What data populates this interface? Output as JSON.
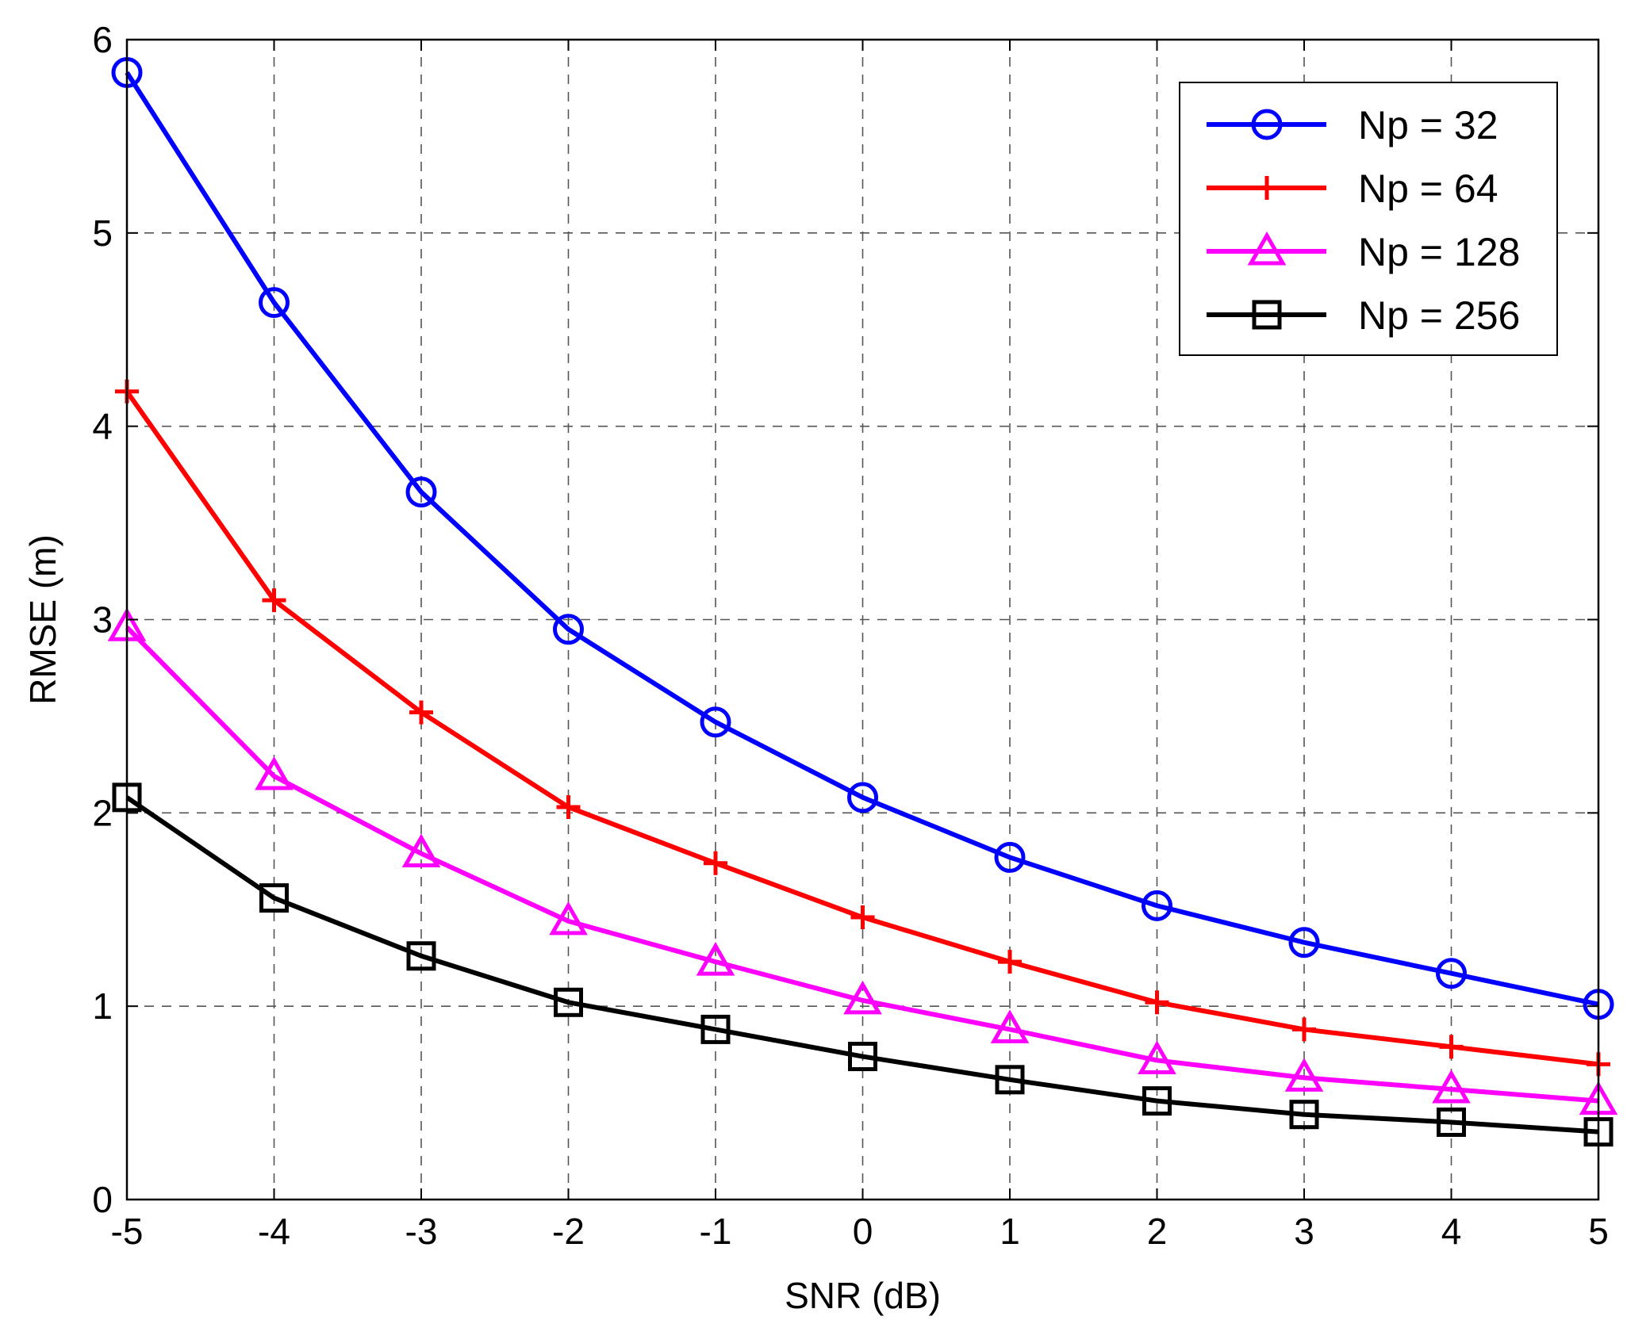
{
  "chart_data": {
    "type": "line",
    "title": "",
    "xlabel": "SNR (dB)",
    "ylabel": "RMSE (m)",
    "x": [
      -5,
      -4,
      -3,
      -2,
      -1,
      0,
      1,
      2,
      3,
      4,
      5
    ],
    "xlim": [
      -5,
      5
    ],
    "ylim": [
      0,
      6
    ],
    "xticks": [
      "-5",
      "-4",
      "-3",
      "-2",
      "-1",
      "0",
      "1",
      "2",
      "3",
      "4",
      "5"
    ],
    "yticks": [
      "0",
      "1",
      "2",
      "3",
      "4",
      "5",
      "6"
    ],
    "grid": true,
    "legend_position": "top-right",
    "series": [
      {
        "name": "Np = 32",
        "color": "#0000ff",
        "marker": "circle",
        "values": [
          5.83,
          4.64,
          3.66,
          2.95,
          2.47,
          2.08,
          1.77,
          1.52,
          1.33,
          1.17,
          1.01
        ]
      },
      {
        "name": "Np = 64",
        "color": "#ff0000",
        "marker": "plus",
        "values": [
          4.18,
          3.1,
          2.52,
          2.03,
          1.74,
          1.46,
          1.23,
          1.02,
          0.88,
          0.79,
          0.7
        ]
      },
      {
        "name": "Np = 128",
        "color": "#ff00ff",
        "marker": "triangle",
        "values": [
          2.96,
          2.19,
          1.79,
          1.44,
          1.23,
          1.03,
          0.88,
          0.72,
          0.63,
          0.57,
          0.51
        ]
      },
      {
        "name": "Np = 256",
        "color": "#000000",
        "marker": "square",
        "values": [
          2.08,
          1.56,
          1.26,
          1.02,
          0.88,
          0.74,
          0.62,
          0.51,
          0.44,
          0.4,
          0.35
        ]
      }
    ]
  }
}
